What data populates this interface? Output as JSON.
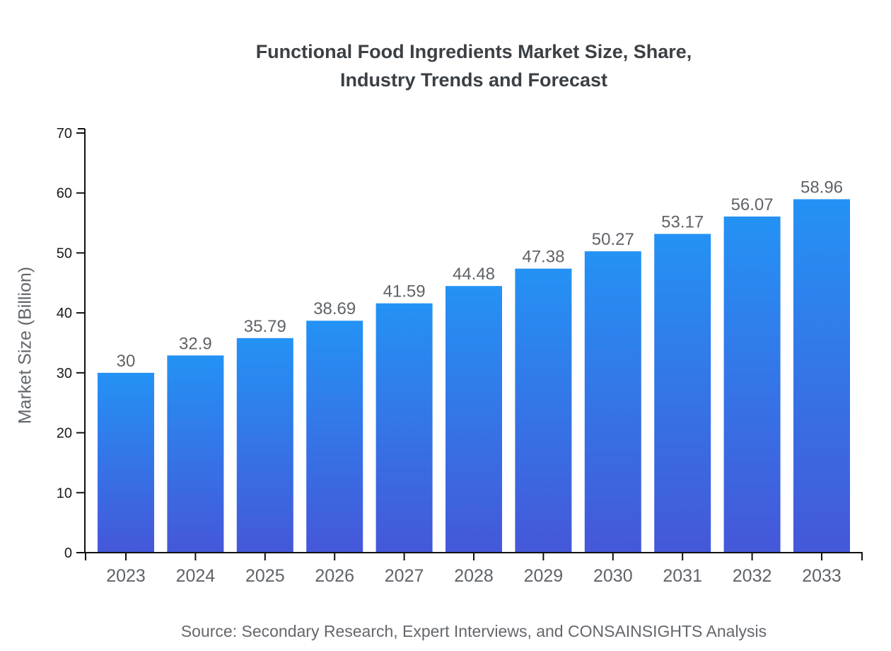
{
  "chart": {
    "title_line1": "Functional Food Ingredients Market Size, Share,",
    "title_line2": "Industry Trends and Forecast",
    "source": "Source: Secondary Research, Expert Interviews, and CONSAINSIGHTS Analysis"
  },
  "chart_data": {
    "type": "bar",
    "title": "Functional Food Ingredients Market Size, Share, Industry Trends and Forecast",
    "categories": [
      "2023",
      "2024",
      "2025",
      "2026",
      "2027",
      "2028",
      "2029",
      "2030",
      "2031",
      "2032",
      "2033"
    ],
    "values": [
      30,
      32.9,
      35.79,
      38.69,
      41.59,
      44.48,
      47.38,
      50.27,
      53.17,
      56.07,
      58.96
    ],
    "xlabel": "",
    "ylabel": "Market Size (Billion)",
    "ylim": [
      0,
      70
    ],
    "ytick_step": 10,
    "yticks": [
      0,
      10,
      20,
      30,
      40,
      50,
      60,
      70
    ],
    "grid": false,
    "legend": false,
    "data_labels": true,
    "colors": {
      "bar_gradient_top": "#2492F5",
      "bar_gradient_bottom": "#4557D9",
      "axis": "#111111",
      "y_tick_label": "#1a1a1a",
      "category_label": "#5f6368",
      "value_label": "#5f6368",
      "title": "#3b4045",
      "source": "#63676c"
    }
  }
}
